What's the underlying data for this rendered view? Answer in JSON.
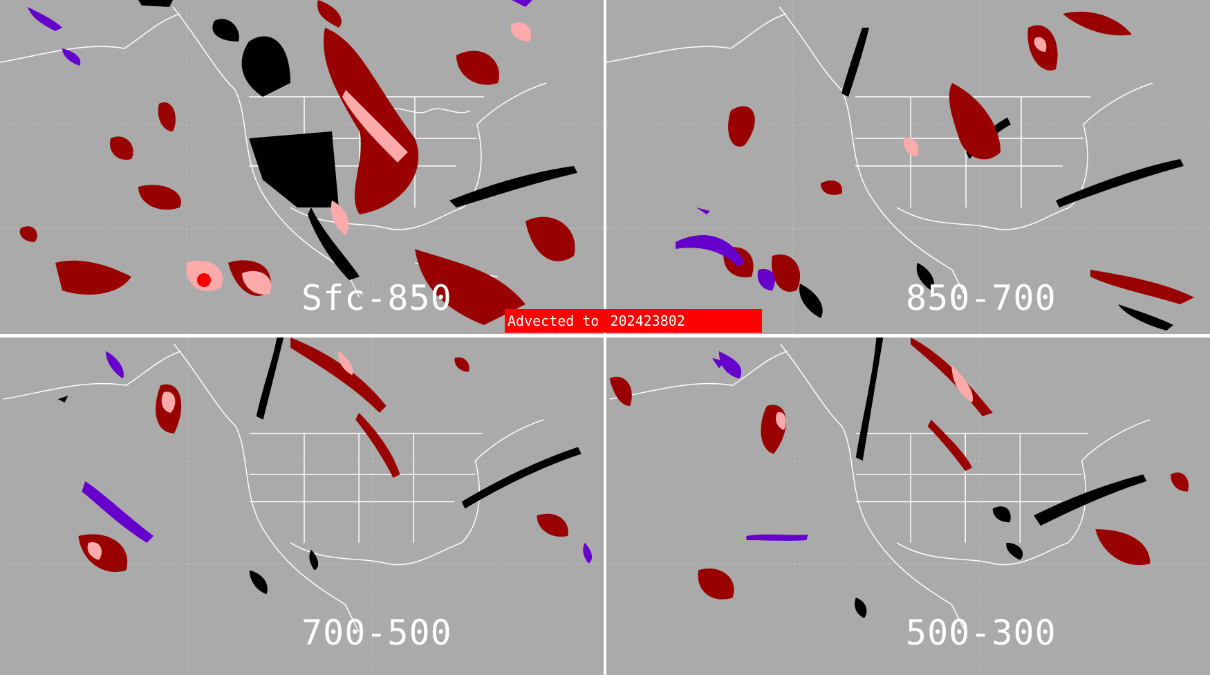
{
  "panels": [
    {
      "id": "tl",
      "label": "Sfc-850"
    },
    {
      "id": "tr",
      "label": "850-700"
    },
    {
      "id": "bl",
      "label": "700-500"
    },
    {
      "id": "br",
      "label": "500-300"
    }
  ],
  "banner": {
    "prefix": "Advected to",
    "time": "202423802"
  },
  "colors": {
    "background": "#aaaaaa",
    "black": "#000000",
    "dark_red": "#990000",
    "pink": "#ffaaaa",
    "red": "#ff0000",
    "purple": "#6600cc",
    "map_lines": "#ffffff",
    "banner": "#ff0000"
  }
}
